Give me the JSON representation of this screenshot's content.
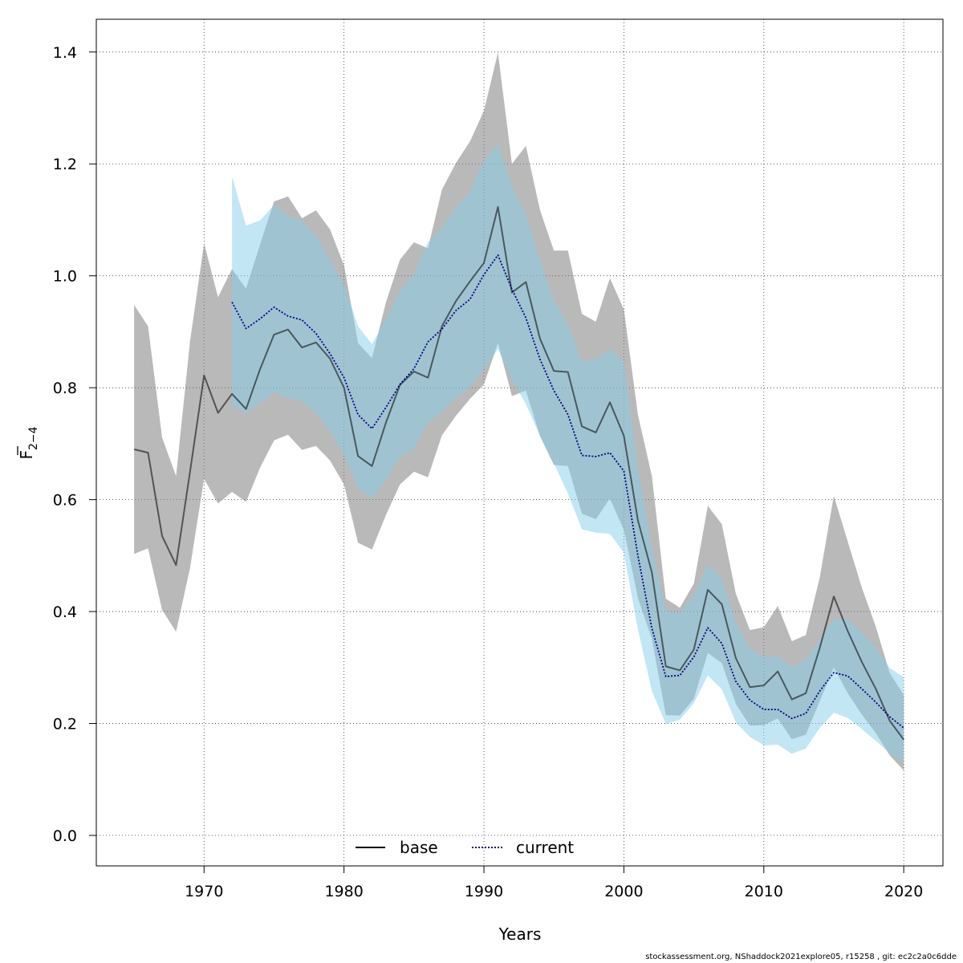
{
  "footer_text": "stockassessment.org, NShaddock2021explore05, r15258 , git: ec2c2a0c6dde",
  "chart_data": {
    "type": "line",
    "xlabel": "Years",
    "ylabel": "F",
    "ylabel_subscript": "2−4",
    "xlim": [
      1962.3,
      2022.8
    ],
    "ylim": [
      -0.0545,
      1.4585
    ],
    "xticks": [
      1970,
      1980,
      1990,
      2000,
      2010,
      2020
    ],
    "yticks": [
      0.0,
      0.2,
      0.4,
      0.6,
      0.8,
      1.0,
      1.2,
      1.4
    ],
    "ytick_labels": [
      "0.0",
      "0.2",
      "0.4",
      "0.6",
      "0.8",
      "1.0",
      "1.2",
      "1.4"
    ],
    "grid": true,
    "legend_position": "bottom-center",
    "colors": {
      "base_line": "#000000",
      "base_band": "#808080",
      "current_line": "#000080",
      "current_band": "#87ceeb"
    },
    "series": [
      {
        "name": "base",
        "style": "solid",
        "x": [
          1965,
          1966,
          1967,
          1968,
          1969,
          1970,
          1971,
          1972,
          1973,
          1974,
          1975,
          1976,
          1977,
          1978,
          1979,
          1980,
          1981,
          1982,
          1983,
          1984,
          1985,
          1986,
          1987,
          1988,
          1989,
          1990,
          1991,
          1992,
          1993,
          1994,
          1995,
          1996,
          1997,
          1998,
          1999,
          2000,
          2001,
          2002,
          2003,
          2004,
          2005,
          2006,
          2007,
          2008,
          2009,
          2010,
          2011,
          2012,
          2013,
          2014,
          2015,
          2016,
          2017,
          2018,
          2019,
          2020
        ],
        "y": [
          0.69,
          0.684,
          0.535,
          0.483,
          0.65,
          0.822,
          0.755,
          0.789,
          0.762,
          0.833,
          0.895,
          0.904,
          0.872,
          0.881,
          0.852,
          0.8,
          0.678,
          0.66,
          0.738,
          0.805,
          0.829,
          0.818,
          0.91,
          0.955,
          0.99,
          1.023,
          1.123,
          0.97,
          0.989,
          0.888,
          0.83,
          0.828,
          0.731,
          0.72,
          0.774,
          0.714,
          0.563,
          0.47,
          0.302,
          0.295,
          0.332,
          0.439,
          0.413,
          0.317,
          0.265,
          0.268,
          0.293,
          0.243,
          0.254,
          0.335,
          0.427,
          0.365,
          0.31,
          0.262,
          0.205,
          0.171
        ],
        "lower": [
          0.503,
          0.513,
          0.403,
          0.364,
          0.478,
          0.637,
          0.593,
          0.614,
          0.596,
          0.657,
          0.706,
          0.716,
          0.689,
          0.696,
          0.67,
          0.627,
          0.523,
          0.511,
          0.573,
          0.627,
          0.65,
          0.64,
          0.715,
          0.75,
          0.78,
          0.806,
          0.88,
          0.785,
          0.795,
          0.714,
          0.662,
          0.66,
          0.575,
          0.565,
          0.602,
          0.546,
          0.424,
          0.351,
          0.215,
          0.214,
          0.244,
          0.326,
          0.308,
          0.235,
          0.196,
          0.197,
          0.209,
          0.172,
          0.18,
          0.24,
          0.3,
          0.254,
          0.216,
          0.183,
          0.143,
          0.116
        ],
        "upper": [
          0.948,
          0.91,
          0.711,
          0.642,
          0.883,
          1.058,
          0.962,
          1.012,
          0.977,
          1.056,
          1.133,
          1.142,
          1.103,
          1.117,
          1.083,
          1.019,
          0.88,
          0.853,
          0.953,
          1.029,
          1.06,
          1.049,
          1.154,
          1.202,
          1.24,
          1.295,
          1.399,
          1.2,
          1.232,
          1.118,
          1.045,
          1.045,
          0.932,
          0.918,
          0.996,
          0.94,
          0.752,
          0.642,
          0.423,
          0.407,
          0.45,
          0.589,
          0.556,
          0.432,
          0.367,
          0.372,
          0.41,
          0.347,
          0.358,
          0.461,
          0.607,
          0.525,
          0.443,
          0.373,
          0.29,
          0.251
        ]
      },
      {
        "name": "current",
        "style": "dotted",
        "x": [
          1972,
          1973,
          1974,
          1975,
          1976,
          1977,
          1978,
          1979,
          1980,
          1981,
          1982,
          1983,
          1984,
          1985,
          1986,
          1987,
          1988,
          1989,
          1990,
          1991,
          1992,
          1993,
          1994,
          1995,
          1996,
          1997,
          1998,
          1999,
          2000,
          2001,
          2002,
          2003,
          2004,
          2005,
          2006,
          2007,
          2008,
          2009,
          2010,
          2011,
          2012,
          2013,
          2014,
          2015,
          2016,
          2017,
          2018,
          2019,
          2020
        ],
        "y": [
          0.953,
          0.906,
          0.923,
          0.944,
          0.928,
          0.921,
          0.897,
          0.861,
          0.818,
          0.752,
          0.727,
          0.765,
          0.806,
          0.834,
          0.882,
          0.905,
          0.938,
          0.958,
          1.002,
          1.037,
          0.976,
          0.925,
          0.851,
          0.795,
          0.752,
          0.679,
          0.677,
          0.684,
          0.651,
          0.5,
          0.37,
          0.284,
          0.286,
          0.319,
          0.371,
          0.343,
          0.275,
          0.242,
          0.225,
          0.225,
          0.209,
          0.218,
          0.258,
          0.291,
          0.285,
          0.262,
          0.238,
          0.212,
          0.192
        ],
        "lower": [
          0.77,
          0.755,
          0.772,
          0.792,
          0.781,
          0.776,
          0.754,
          0.723,
          0.68,
          0.621,
          0.602,
          0.636,
          0.676,
          0.692,
          0.738,
          0.757,
          0.782,
          0.801,
          0.834,
          0.869,
          0.815,
          0.771,
          0.714,
          0.665,
          0.611,
          0.547,
          0.541,
          0.539,
          0.505,
          0.368,
          0.258,
          0.199,
          0.207,
          0.236,
          0.286,
          0.261,
          0.202,
          0.176,
          0.161,
          0.162,
          0.146,
          0.155,
          0.192,
          0.219,
          0.21,
          0.19,
          0.169,
          0.147,
          0.13
        ],
        "upper": [
          1.178,
          1.09,
          1.099,
          1.127,
          1.106,
          1.098,
          1.071,
          1.028,
          0.985,
          0.91,
          0.878,
          0.922,
          0.972,
          1.003,
          1.06,
          1.085,
          1.123,
          1.15,
          1.206,
          1.234,
          1.16,
          1.108,
          1.027,
          0.957,
          0.913,
          0.847,
          0.85,
          0.869,
          0.847,
          0.656,
          0.513,
          0.401,
          0.398,
          0.428,
          0.484,
          0.458,
          0.381,
          0.335,
          0.318,
          0.321,
          0.301,
          0.313,
          0.35,
          0.386,
          0.387,
          0.362,
          0.336,
          0.299,
          0.283
        ]
      }
    ]
  }
}
